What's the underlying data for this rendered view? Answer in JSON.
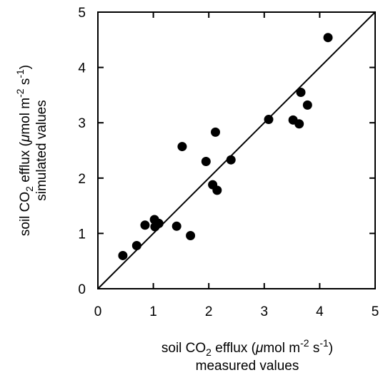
{
  "chart_data": {
    "type": "scatter",
    "title": "",
    "xlabel": {
      "line1_parts": [
        "soil CO",
        "2",
        " efflux (",
        "μ",
        "mol m",
        "-2",
        " s",
        "-1",
        ")"
      ],
      "line2": "measured values"
    },
    "ylabel": {
      "line1_parts": [
        "soil CO",
        "2",
        " efflux (",
        "μ",
        "mol m",
        "-2",
        " s",
        "-1",
        ")"
      ],
      "line2": "simulated values"
    },
    "xlim": [
      0,
      5
    ],
    "ylim": [
      0,
      5
    ],
    "xticks": [
      "0",
      "1",
      "2",
      "3",
      "4",
      "5"
    ],
    "yticks": [
      "0",
      "1",
      "2",
      "3",
      "4",
      "5"
    ],
    "grid": false,
    "legend": "none",
    "reference_line": {
      "type": "1:1",
      "from": [
        0,
        0
      ],
      "to": [
        5,
        5
      ]
    },
    "marker_color": "#000000",
    "points": [
      {
        "x": 0.45,
        "y": 0.6
      },
      {
        "x": 0.7,
        "y": 0.78
      },
      {
        "x": 0.85,
        "y": 1.15
      },
      {
        "x": 1.02,
        "y": 1.25
      },
      {
        "x": 1.03,
        "y": 1.12
      },
      {
        "x": 1.1,
        "y": 1.18
      },
      {
        "x": 1.42,
        "y": 1.13
      },
      {
        "x": 1.52,
        "y": 2.57
      },
      {
        "x": 1.67,
        "y": 0.96
      },
      {
        "x": 1.95,
        "y": 2.3
      },
      {
        "x": 2.07,
        "y": 1.88
      },
      {
        "x": 2.12,
        "y": 2.83
      },
      {
        "x": 2.15,
        "y": 1.78
      },
      {
        "x": 2.4,
        "y": 2.33
      },
      {
        "x": 3.08,
        "y": 3.06
      },
      {
        "x": 3.52,
        "y": 3.05
      },
      {
        "x": 3.63,
        "y": 2.98
      },
      {
        "x": 3.66,
        "y": 3.55
      },
      {
        "x": 3.78,
        "y": 3.32
      },
      {
        "x": 4.15,
        "y": 4.54
      }
    ]
  }
}
